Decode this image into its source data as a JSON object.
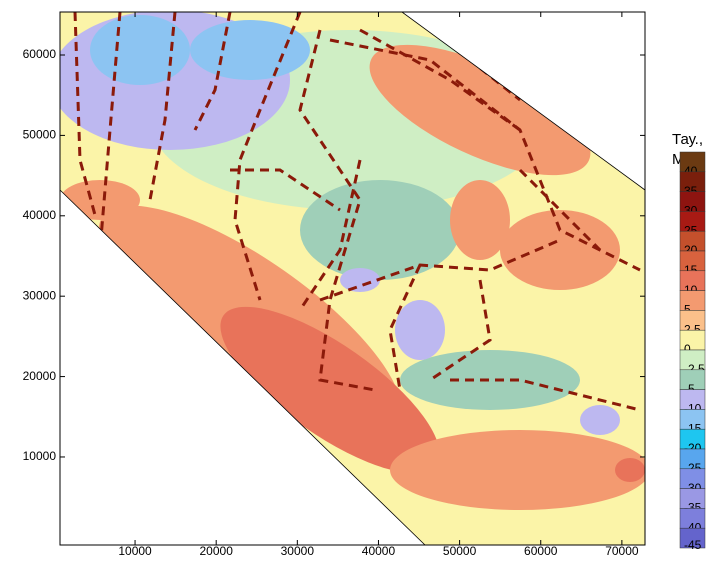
{
  "map": {
    "xlim": [
      750,
      72850
    ],
    "ylim": [
      -950,
      65350
    ],
    "xticks": [
      10000,
      20000,
      30000,
      40000,
      50000,
      60000,
      70000
    ],
    "yticks": [
      10000,
      20000,
      30000,
      40000,
      50000,
      60000
    ]
  },
  "legend": {
    "title": [
      "Тау.,",
      "МПа"
    ],
    "levels": [
      40,
      35,
      30,
      25,
      20,
      15,
      10,
      5,
      2.5,
      0,
      -2.5,
      -5,
      -10,
      -15,
      -20,
      -25,
      -30,
      -35,
      -40,
      -45
    ],
    "colors": [
      "#6b3a12",
      "#7a1f0c",
      "#8e1410",
      "#a81a14",
      "#c4502c",
      "#d8623e",
      "#e8735a",
      "#f39a70",
      "#fbc08a",
      "#fbf4a8",
      "#cfeec4",
      "#9fcfb8",
      "#bdb8f0",
      "#8cc4f2",
      "#1ec6f0",
      "#58a6ee",
      "#7f8fe6",
      "#9a98e4",
      "#7d7fdc",
      "#6464cc"
    ]
  }
}
